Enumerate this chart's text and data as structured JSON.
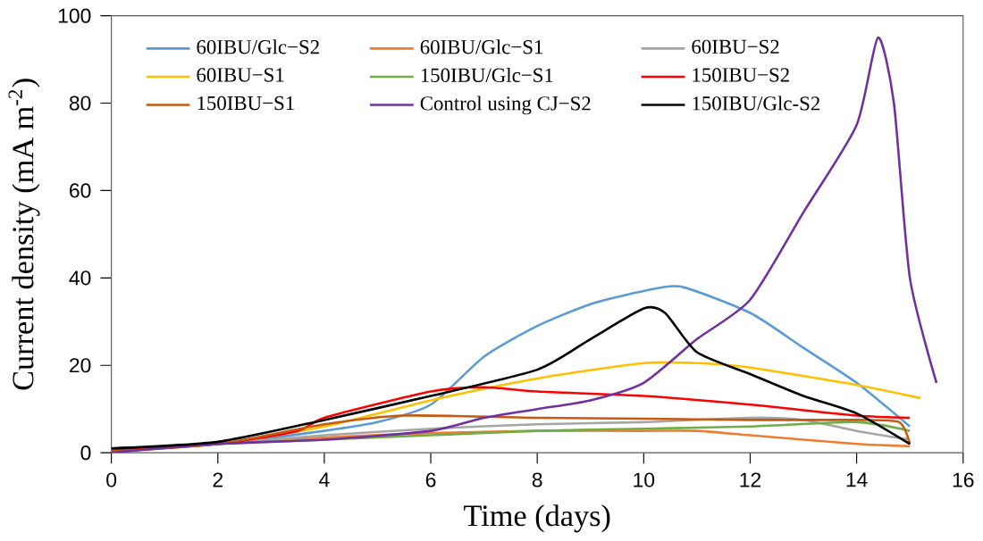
{
  "chart_data": {
    "type": "line",
    "xlabel": "Time (days)",
    "ylabel": "Current density (mA m$^{-2}$)",
    "xlim": [
      0,
      16
    ],
    "xticks": [
      0,
      2,
      4,
      6,
      8,
      10,
      12,
      14,
      16
    ],
    "ylim": [
      0,
      100
    ],
    "yticks": [
      0,
      20,
      40,
      60,
      80,
      100
    ],
    "grid": false,
    "legend": "top left",
    "marker": "none",
    "line_style": "solid",
    "series": [
      {
        "name": "60IBU/Glc−S2",
        "color": "#5b9bd5",
        "x": [
          0,
          2,
          4,
          5,
          6,
          7,
          8,
          9,
          10,
          10.7,
          12,
          13,
          14,
          15
        ],
        "values": [
          0.5,
          2,
          5,
          7,
          11,
          22,
          29,
          34,
          37,
          38,
          32,
          24,
          16,
          6
        ]
      },
      {
        "name": "60IBU/Glc−S1",
        "color": "#ed7d31",
        "x": [
          0,
          2,
          4,
          6,
          8,
          10,
          11,
          12,
          14,
          15
        ],
        "values": [
          0.2,
          2,
          3.5,
          4.5,
          5,
          5,
          5,
          4,
          2,
          1.5
        ]
      },
      {
        "name": "60IBU−S2",
        "color": "#a5a5a5",
        "x": [
          0,
          2,
          4,
          6,
          8,
          10,
          12,
          13,
          14,
          15
        ],
        "values": [
          0.5,
          2,
          4,
          5.5,
          6.5,
          7,
          8,
          7.5,
          5,
          3
        ]
      },
      {
        "name": "60IBU−S1",
        "color": "#ffc000",
        "x": [
          0,
          2,
          4,
          6,
          8,
          10,
          11,
          12,
          14,
          15.2
        ],
        "values": [
          0.3,
          2,
          6,
          12,
          17,
          20.5,
          20.5,
          19.5,
          15.5,
          12.5
        ]
      },
      {
        "name": "150IBU/Glc−S1",
        "color": "#70ad47",
        "x": [
          0,
          2,
          4,
          6,
          8,
          10,
          12,
          14,
          15
        ],
        "values": [
          0.5,
          2,
          3,
          4,
          5,
          5.5,
          6,
          7,
          5
        ]
      },
      {
        "name": "150IBU−S2",
        "color": "#ff0000",
        "x": [
          0,
          2,
          3.5,
          4,
          6,
          7,
          8,
          10,
          12,
          14,
          15
        ],
        "values": [
          0.5,
          2,
          5,
          8,
          14,
          15,
          14,
          13,
          11,
          8.5,
          8
        ]
      },
      {
        "name": "150IBU−S1",
        "color": "#c55a11",
        "x": [
          0,
          2,
          4,
          5.5,
          8,
          10,
          12,
          14,
          14.8,
          15
        ],
        "values": [
          0.3,
          2,
          6.5,
          8.5,
          8,
          7.8,
          7.5,
          7.5,
          7,
          2
        ]
      },
      {
        "name": "Control using CJ−S2",
        "color": "#7030a0",
        "x": [
          0,
          2,
          4,
          6,
          7,
          8,
          9,
          10,
          11,
          12,
          13,
          14,
          14.4,
          14.7,
          15,
          15.5
        ],
        "values": [
          0,
          2,
          3,
          5,
          8,
          10,
          12,
          16,
          26,
          35,
          55,
          75,
          95,
          80,
          40,
          16
        ]
      },
      {
        "name": "150IBU/Glc-S2",
        "color": "#000000",
        "x": [
          0,
          2,
          4,
          6,
          8,
          9,
          10,
          10.4,
          11,
          12,
          13,
          14,
          15
        ],
        "values": [
          1,
          2.5,
          7.5,
          13,
          19,
          26,
          33,
          32,
          23,
          18,
          13,
          9,
          2
        ]
      }
    ]
  }
}
